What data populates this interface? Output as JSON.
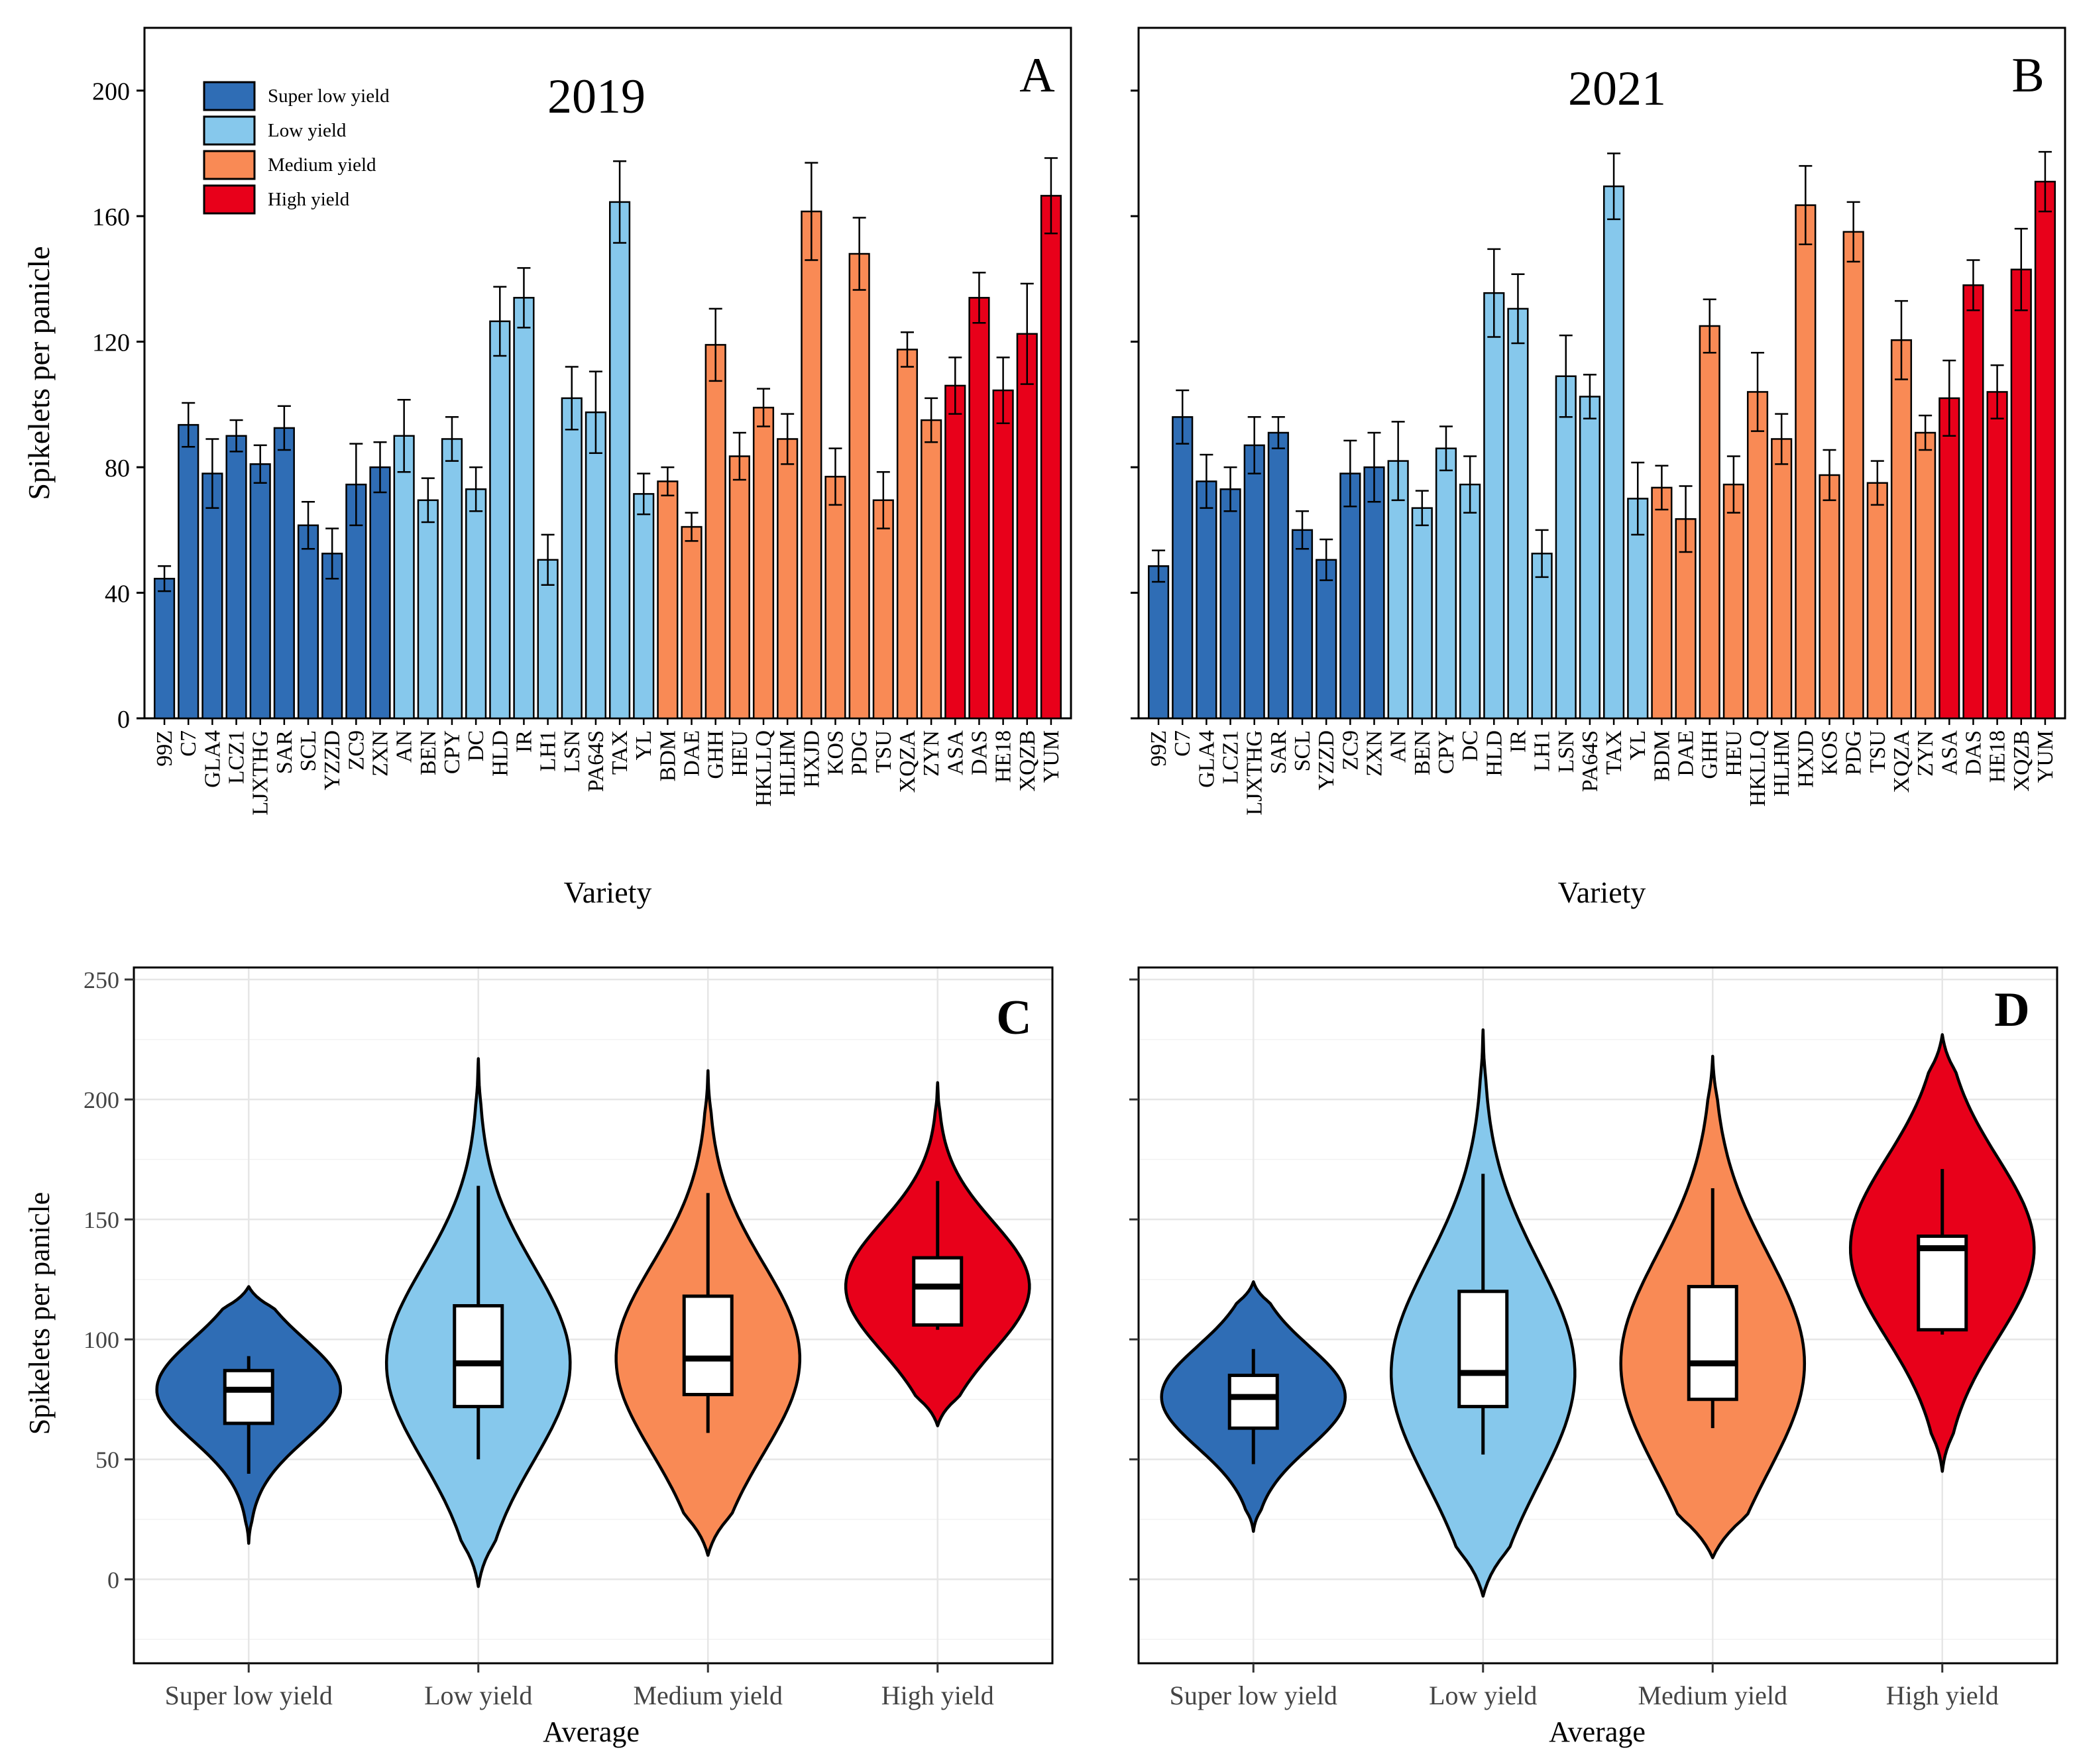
{
  "colors": {
    "super_low": "#2f6db5",
    "low": "#86c8ec",
    "medium": "#f98a55",
    "high": "#e8001a"
  },
  "chart_data": [
    {
      "panel": "A",
      "type": "bar",
      "title": "2019",
      "xlabel": "Variety",
      "ylabel": "Spikelets per panicle",
      "ylim": [
        0,
        220
      ],
      "yticks": [
        "0",
        "40",
        "80",
        "120",
        "160",
        "200"
      ],
      "legend": {
        "placement": "top-left",
        "entries": [
          "Super low yield",
          "Low yield",
          "Medium yield",
          "High yield"
        ]
      },
      "categories": [
        "99Z",
        "C7",
        "GLA4",
        "LCZ1",
        "LJXTHG",
        "SAR",
        "SCL",
        "YZZD",
        "ZC9",
        "ZXN",
        "AN",
        "BEN",
        "CPY",
        "DC",
        "HLD",
        "IR",
        "LH1",
        "LSN",
        "PA64S",
        "TAX",
        "YL",
        "BDM",
        "DAE",
        "GHH",
        "HEU",
        "HKLLQ",
        "HLHM",
        "HXJD",
        "KOS",
        "PDG",
        "TSU",
        "XQZA",
        "ZYN",
        "ASA",
        "DAS",
        "HE18",
        "XQZB",
        "YUM"
      ],
      "groups": [
        0,
        0,
        0,
        0,
        0,
        0,
        0,
        0,
        0,
        0,
        1,
        1,
        1,
        1,
        1,
        1,
        1,
        1,
        1,
        1,
        1,
        2,
        2,
        2,
        2,
        2,
        2,
        2,
        2,
        2,
        2,
        2,
        2,
        3,
        3,
        3,
        3,
        3
      ],
      "values": [
        44.5,
        93.5,
        78,
        90,
        81,
        92.5,
        61.5,
        52.5,
        74.5,
        80,
        90,
        69.5,
        89,
        73,
        126.5,
        134,
        50.5,
        102,
        97.5,
        164.5,
        71.5,
        75.5,
        61,
        119,
        83.5,
        99,
        89,
        161.5,
        77,
        148,
        69.5,
        117.5,
        95,
        106,
        134,
        104.5,
        122.5,
        166.5
      ],
      "errors": [
        4,
        7,
        11,
        5,
        6,
        7,
        7.5,
        8,
        13,
        8,
        11.5,
        7,
        7,
        7,
        11,
        9.5,
        8,
        10,
        13,
        13,
        6.5,
        4.5,
        4.5,
        11.5,
        7.5,
        6,
        8,
        15.5,
        9,
        11.5,
        9,
        5.5,
        7,
        9,
        8,
        10.5,
        16,
        12
      ]
    },
    {
      "panel": "B",
      "type": "bar",
      "title": "2021",
      "xlabel": "Variety",
      "ylabel": "",
      "ylim": [
        0,
        220
      ],
      "yticks": [
        "0",
        "40",
        "80",
        "120",
        "160",
        "200"
      ],
      "categories": [
        "99Z",
        "C7",
        "GLA4",
        "LCZ1",
        "LJXTHG",
        "SAR",
        "SCL",
        "YZZD",
        "ZC9",
        "ZXN",
        "AN",
        "BEN",
        "CPY",
        "DC",
        "HLD",
        "IR",
        "LH1",
        "LSN",
        "PA64S",
        "TAX",
        "YL",
        "BDM",
        "DAE",
        "GHH",
        "HEU",
        "HKLLQ",
        "HLHM",
        "HXJD",
        "KOS",
        "PDG",
        "TSU",
        "XQZA",
        "ZYN",
        "ASA",
        "DAS",
        "HE18",
        "XQZB",
        "YUM"
      ],
      "groups": [
        0,
        0,
        0,
        0,
        0,
        0,
        0,
        0,
        0,
        0,
        1,
        1,
        1,
        1,
        1,
        1,
        1,
        1,
        1,
        1,
        1,
        2,
        2,
        2,
        2,
        2,
        2,
        2,
        2,
        2,
        2,
        2,
        2,
        3,
        3,
        3,
        3,
        3
      ],
      "values": [
        48.5,
        96,
        75.5,
        73,
        87,
        91,
        60,
        50.5,
        78,
        80,
        82,
        67,
        86,
        74.5,
        135.5,
        130.5,
        52.5,
        109,
        102.5,
        169.5,
        70,
        73.5,
        63.5,
        125,
        74.5,
        104,
        89,
        163.5,
        77.5,
        155,
        75,
        120.5,
        91,
        102,
        138,
        104,
        143,
        171
      ],
      "errors": [
        5,
        8.5,
        8.5,
        7,
        9,
        5,
        6,
        6.5,
        10.5,
        11,
        12.5,
        5.5,
        7,
        9,
        14,
        11,
        7.5,
        13,
        7,
        10.5,
        11.5,
        7,
        10.5,
        8.5,
        9,
        12.5,
        8,
        12.5,
        8,
        9.5,
        7,
        12.5,
        5.5,
        12,
        8,
        8.5,
        13,
        9.5
      ]
    },
    {
      "panel": "C",
      "type": "violin",
      "xlabel": "Average",
      "ylabel": "Spikelets per panicle",
      "ylim": [
        -35,
        255
      ],
      "yticks": [
        "0",
        "50",
        "100",
        "150",
        "200",
        "250"
      ],
      "categories": [
        "Super low yield",
        "Low yield",
        "Medium yield",
        "High yield"
      ],
      "violin_range": [
        [
          15,
          122
        ],
        [
          -3,
          217
        ],
        [
          10,
          212
        ],
        [
          64,
          207
        ]
      ],
      "box": [
        {
          "q1": 65,
          "median": 79,
          "q3": 87,
          "whisker_low": 44,
          "whisker_high": 93
        },
        {
          "q1": 72,
          "median": 90,
          "q3": 114,
          "whisker_low": 50,
          "whisker_high": 164
        },
        {
          "q1": 77,
          "median": 92,
          "q3": 118,
          "whisker_low": 61,
          "whisker_high": 161
        },
        {
          "q1": 106,
          "median": 122,
          "q3": 134,
          "whisker_low": 104,
          "whisker_high": 166
        }
      ]
    },
    {
      "panel": "D",
      "type": "violin",
      "xlabel": "Average",
      "ylabel": "",
      "ylim": [
        -35,
        255
      ],
      "yticks": [
        "0",
        "50",
        "100",
        "150",
        "200",
        "250"
      ],
      "categories": [
        "Super low yield",
        "Low yield",
        "Medium yield",
        "High yield"
      ],
      "violin_range": [
        [
          20,
          124
        ],
        [
          -7,
          229
        ],
        [
          9,
          218
        ],
        [
          45,
          227
        ]
      ],
      "box": [
        {
          "q1": 63,
          "median": 76,
          "q3": 85,
          "whisker_low": 48,
          "whisker_high": 96
        },
        {
          "q1": 72,
          "median": 86,
          "q3": 120,
          "whisker_low": 52,
          "whisker_high": 169
        },
        {
          "q1": 75,
          "median": 90,
          "q3": 122,
          "whisker_low": 63,
          "whisker_high": 163
        },
        {
          "q1": 104,
          "median": 138,
          "q3": 143,
          "whisker_low": 102,
          "whisker_high": 171
        }
      ]
    }
  ]
}
